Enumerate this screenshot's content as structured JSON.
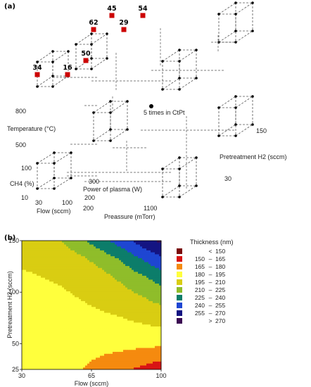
{
  "panel_a": {
    "label": "(a)",
    "axis_labels": {
      "temperature": "Temperature (°C)",
      "ch4": "CH4 (%)",
      "flow": "Flow (sccm)",
      "pressure": "Preassure (mTorr)",
      "power": "Power of plasma (W)",
      "pretreatment": "Pretreatment H2 (sccm)"
    },
    "ticks": {
      "temperature": [
        "800",
        "500"
      ],
      "ch4": [
        "100",
        "10"
      ],
      "flow": [
        "30",
        "100"
      ],
      "pressure": [
        "200",
        "1100"
      ],
      "power": [
        "300",
        "200"
      ],
      "pretreatment": [
        "150",
        "30"
      ]
    },
    "center_point_label": "5 times in CtPt",
    "highlighted_values": [
      "34",
      "16",
      "50",
      "62",
      "29",
      "45",
      "54"
    ],
    "colors": {
      "highlight": "#cc0000",
      "line": "#555555",
      "point": "#000000"
    }
  },
  "panel_b": {
    "label": "(b)",
    "legend": {
      "title": "Thickness (nm)",
      "items": [
        {
          "lo": "",
          "sep": "<",
          "hi": "150",
          "color": "#7a0a0a"
        },
        {
          "lo": "150",
          "sep": "–",
          "hi": "165",
          "color": "#d91414"
        },
        {
          "lo": "165",
          "sep": "–",
          "hi": "180",
          "color": "#f58a0f"
        },
        {
          "lo": "180",
          "sep": "–",
          "hi": "195",
          "color": "#ffff3c"
        },
        {
          "lo": "195",
          "sep": "–",
          "hi": "210",
          "color": "#d9cd12"
        },
        {
          "lo": "210",
          "sep": "–",
          "hi": "225",
          "color": "#8fbd2a"
        },
        {
          "lo": "225",
          "sep": "–",
          "hi": "240",
          "color": "#0c7d6a"
        },
        {
          "lo": "240",
          "sep": "–",
          "hi": "255",
          "color": "#1e46d2"
        },
        {
          "lo": "255",
          "sep": "–",
          "hi": "270",
          "color": "#141482"
        },
        {
          "lo": "",
          "sep": ">",
          "hi": "270",
          "color": "#3b0a52"
        }
      ]
    }
  },
  "chart_data": [
    {
      "type": "scatter",
      "factors": [
        "Temperature (°C)",
        "CH4 (%)",
        "Flow (sccm)",
        "Preassure (mTorr)",
        "Power of plasma (W)",
        "Pretreatment H2 (sccm)"
      ],
      "levels": {
        "Temperature (°C)": [
          500,
          800
        ],
        "CH4 (%)": [
          10,
          100
        ],
        "Flow (sccm)": [
          30,
          100
        ],
        "Preassure (mTorr)": [
          200,
          1100
        ],
        "Power of plasma (W)": [
          200,
          300
        ],
        "Pretreatment H2 (sccm)": [
          30,
          150
        ]
      },
      "annotations": [
        "5 times in CtPt"
      ],
      "highlighted_points": [
        34,
        16,
        50,
        62,
        29,
        45,
        54
      ]
    },
    {
      "type": "heatmap",
      "xlabel": "Flow (sccm)",
      "ylabel": "Pretreatment H2 (sccm)",
      "xlim": [
        30,
        100
      ],
      "ylim": [
        25,
        150
      ],
      "xticks": [
        30,
        65,
        100
      ],
      "yticks": [
        25,
        50,
        100,
        150
      ],
      "zlabel": "Thickness (nm)",
      "levels": [
        150,
        165,
        180,
        195,
        210,
        225,
        240,
        255,
        270
      ],
      "grid": [
        [
          200,
          203,
          210,
          222,
          235,
          248,
          262,
          274
        ],
        [
          198,
          198,
          201,
          207,
          216,
          227,
          240,
          252
        ],
        [
          193,
          195,
          197,
          200,
          205,
          213,
          222,
          232
        ],
        [
          189,
          191,
          193,
          196,
          199,
          204,
          210,
          217
        ],
        [
          188,
          189,
          190,
          192,
          194,
          196,
          199,
          203
        ],
        [
          189,
          188,
          188,
          189,
          189,
          190,
          191,
          192
        ],
        [
          191,
          188,
          186,
          184,
          182,
          180,
          178,
          176
        ],
        [
          193,
          188,
          184,
          180,
          175,
          168,
          162,
          155
        ]
      ]
    }
  ]
}
